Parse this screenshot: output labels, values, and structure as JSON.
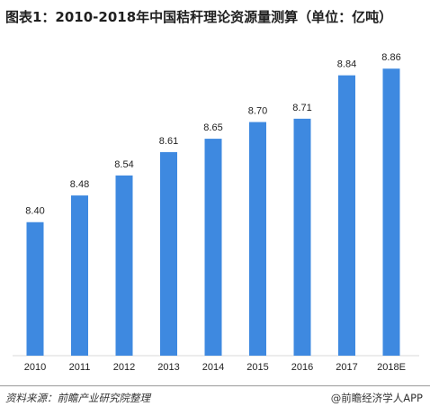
{
  "title": "图表1：2010-2018年中国秸秆理论资源量测算（单位：亿吨）",
  "source": "资料来源：前瞻产业研究院整理",
  "credit": "@前瞻经济学人APP",
  "colors": {
    "bar": "#3e89e0",
    "axis": "#d9d9d9"
  },
  "chart_data": {
    "type": "bar",
    "categories": [
      "2010",
      "2011",
      "2012",
      "2013",
      "2014",
      "2015",
      "2016",
      "2017",
      "2018E"
    ],
    "values": [
      8.4,
      8.48,
      8.54,
      8.61,
      8.65,
      8.7,
      8.71,
      8.84,
      8.86
    ],
    "value_labels": [
      "8.40",
      "8.48",
      "8.54",
      "8.61",
      "8.65",
      "8.70",
      "8.71",
      "8.84",
      "8.86"
    ],
    "ylim": [
      8.0,
      8.92
    ],
    "grid": false,
    "legend": "none"
  }
}
